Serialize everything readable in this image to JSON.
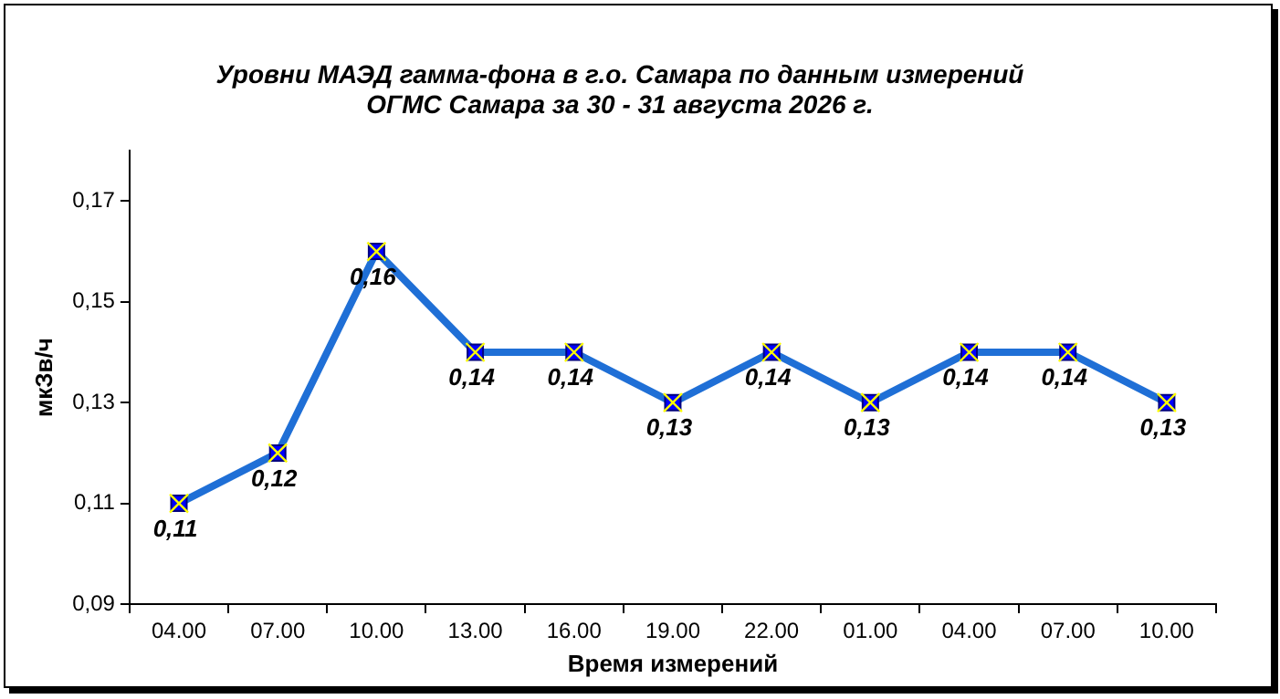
{
  "chart_data": {
    "type": "line",
    "title": "Уровни МАЭД гамма-фона в г.о. Самара по данным измерений\nОГМС Самара за 30 - 31 августа 2026 г.",
    "xlabel": "Время измерений",
    "ylabel": "мкЗв/ч",
    "categories": [
      "04.00",
      "07.00",
      "10.00",
      "13.00",
      "16.00",
      "19.00",
      "22.00",
      "01.00",
      "04.00",
      "07.00",
      "10.00"
    ],
    "series": [
      {
        "color": "#1f6fd6",
        "values": [
          0.11,
          0.12,
          0.16,
          0.14,
          0.14,
          0.13,
          0.14,
          0.13,
          0.14,
          0.14,
          0.13
        ],
        "value_labels": [
          "0,11",
          "0,12",
          "0,16",
          "0,14",
          "0,14",
          "0,13",
          "0,14",
          "0,13",
          "0,14",
          "0,14",
          "0,13"
        ]
      }
    ],
    "ylim": [
      0.09,
      0.18
    ],
    "yticks": [
      {
        "value": 0.09,
        "label": "0,09"
      },
      {
        "value": 0.11,
        "label": "0,11"
      },
      {
        "value": 0.13,
        "label": "0,13"
      },
      {
        "value": 0.15,
        "label": "0,15"
      },
      {
        "value": 0.17,
        "label": "0,17"
      }
    ],
    "grid": false,
    "legend": false,
    "marker": "square",
    "line_style": "solid"
  }
}
